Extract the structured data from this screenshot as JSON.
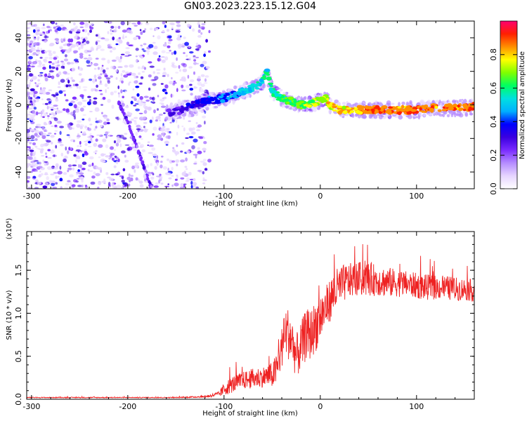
{
  "title": "GN03.2023.223.15.12.G04",
  "chart_data": [
    {
      "type": "heatmap",
      "xlabel": "Height of straight line (km)",
      "ylabel": "Frequency (Hz)",
      "xlim": [
        -305,
        160
      ],
      "ylim": [
        -50,
        50
      ],
      "xticks": [
        -300,
        -200,
        -100,
        0,
        100
      ],
      "yticks": [
        -40,
        -20,
        0,
        20,
        40
      ],
      "colorbar": {
        "label": "Normalized spectral amplitude",
        "range": [
          0.0,
          1.0
        ],
        "ticks": [
          0.0,
          0.2,
          0.4,
          0.6,
          0.8
        ],
        "colormap": [
          "#ffffff",
          "#e6d5ff",
          "#b58cff",
          "#7a2bff",
          "#3a00e0",
          "#0000ff",
          "#00b0ff",
          "#00e0e0",
          "#00ff60",
          "#80ff00",
          "#ffff00",
          "#ff9000",
          "#ff2000",
          "#ff0070"
        ]
      },
      "ridge": {
        "x": [
          -150,
          -140,
          -130,
          -120,
          -110,
          -100,
          -90,
          -80,
          -70,
          -60,
          -55,
          -50,
          -45,
          -40,
          -30,
          -20,
          -10,
          0,
          5,
          10,
          20,
          40,
          60,
          80,
          100,
          120,
          140,
          160
        ],
        "y": [
          -4,
          -2,
          0,
          2,
          3,
          4,
          6,
          8,
          10,
          14,
          19,
          8,
          6,
          4,
          2,
          0,
          0,
          3,
          4,
          0,
          -3,
          -3,
          -3,
          -3,
          -3,
          -2,
          -2,
          -1
        ]
      },
      "diagonal_feature": {
        "x": [
          -210,
          -200,
          -190,
          -180,
          -175
        ],
        "y": [
          2,
          -10,
          -26,
          -42,
          -50
        ]
      }
    },
    {
      "type": "line",
      "xlabel": "Height of straight line (km)",
      "ylabel": "SNR (10 * v/v)",
      "y_multiplier": "(x10⁴)",
      "xlim": [
        -305,
        160
      ],
      "ylim": [
        0,
        1.95
      ],
      "xticks": [
        -300,
        -200,
        -100,
        0,
        100
      ],
      "yticks": [
        0.0,
        0.5,
        1.0,
        1.5
      ],
      "color": "#ee2222",
      "series": [
        {
          "x": [
            -305,
            -250,
            -200,
            -150,
            -120,
            -105,
            -100,
            -90,
            -80,
            -70,
            -60,
            -50,
            -45,
            -40,
            -35,
            -30,
            -25,
            -20,
            -15,
            -10,
            -5,
            0,
            5,
            10,
            15,
            20,
            25,
            30,
            40,
            50,
            60,
            70,
            80,
            90,
            100,
            110,
            120,
            130,
            140,
            150,
            160
          ],
          "y": [
            0.02,
            0.02,
            0.02,
            0.02,
            0.03,
            0.06,
            0.12,
            0.18,
            0.22,
            0.24,
            0.26,
            0.28,
            0.35,
            0.6,
            0.8,
            0.7,
            0.5,
            0.6,
            0.75,
            0.75,
            0.85,
            0.95,
            1.05,
            1.15,
            1.25,
            1.3,
            1.35,
            1.38,
            1.4,
            1.4,
            1.38,
            1.36,
            1.35,
            1.34,
            1.32,
            1.3,
            1.3,
            1.3,
            1.28,
            1.28,
            1.26
          ],
          "noise_amplitude": [
            0.005,
            0.005,
            0.005,
            0.005,
            0.01,
            0.03,
            0.08,
            0.1,
            0.1,
            0.12,
            0.12,
            0.15,
            0.2,
            0.25,
            0.3,
            0.3,
            0.25,
            0.3,
            0.3,
            0.3,
            0.3,
            0.3,
            0.25,
            0.25,
            0.25,
            0.25,
            0.22,
            0.2,
            0.2,
            0.2,
            0.18,
            0.18,
            0.16,
            0.15,
            0.15,
            0.15,
            0.14,
            0.14,
            0.14,
            0.13,
            0.13
          ]
        }
      ]
    }
  ]
}
